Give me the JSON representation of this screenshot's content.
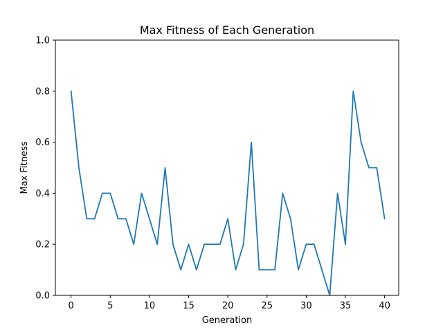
{
  "chart_data": {
    "type": "line",
    "title": "Max Fitness of Each Generation",
    "xlabel": "Generation",
    "ylabel": "Max Fitness",
    "xlim": [
      -2,
      41.8
    ],
    "ylim": [
      0.0,
      1.0
    ],
    "xticks": [
      0,
      5,
      10,
      15,
      20,
      25,
      30,
      35,
      40
    ],
    "xtick_labels": [
      "0",
      "5",
      "10",
      "15",
      "20",
      "25",
      "30",
      "35",
      "40"
    ],
    "yticks": [
      0.0,
      0.2,
      0.4,
      0.6,
      0.8,
      1.0
    ],
    "ytick_labels": [
      "0.0",
      "0.2",
      "0.4",
      "0.6",
      "0.8",
      "1.0"
    ],
    "grid": false,
    "series": [
      {
        "color": "#1f77b4",
        "x": [
          0,
          1,
          2,
          3,
          4,
          5,
          6,
          7,
          8,
          9,
          10,
          11,
          12,
          13,
          14,
          15,
          16,
          17,
          18,
          19,
          20,
          21,
          22,
          23,
          24,
          25,
          26,
          27,
          28,
          29,
          30,
          31,
          32,
          33,
          34,
          35,
          36,
          37,
          38,
          39,
          40
        ],
        "y": [
          0.8,
          0.5,
          0.3,
          0.3,
          0.4,
          0.4,
          0.3,
          0.3,
          0.2,
          0.4,
          0.3,
          0.2,
          0.5,
          0.2,
          0.1,
          0.2,
          0.1,
          0.2,
          0.2,
          0.2,
          0.3,
          0.1,
          0.2,
          0.6,
          0.1,
          0.1,
          0.1,
          0.4,
          0.3,
          0.1,
          0.2,
          0.2,
          0.1,
          0.0,
          0.4,
          0.2,
          0.8,
          0.6,
          0.5,
          0.5,
          0.3
        ]
      }
    ]
  }
}
